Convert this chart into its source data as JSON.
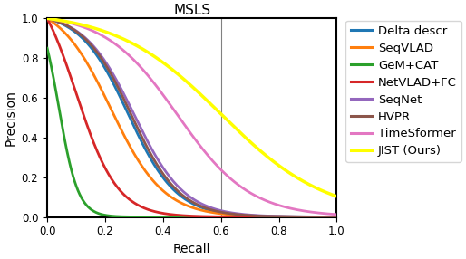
{
  "title": "MSLS",
  "xlabel": "Recall",
  "ylabel": "Precision",
  "xlim": [
    0.0,
    1.0
  ],
  "ylim": [
    0.0,
    1.0
  ],
  "vline_x": 0.6,
  "curves": [
    {
      "label": "Delta descr.",
      "color": "#1f77b4",
      "peak_recall": 0.28,
      "steepness": 12.0,
      "start_precision": 1.0
    },
    {
      "label": "SeqVLAD",
      "color": "#ff7f0e",
      "peak_recall": 0.22,
      "steepness": 11.0,
      "start_precision": 1.0
    },
    {
      "label": "GeM+CAT",
      "color": "#2ca02c",
      "peak_recall": 0.04,
      "steepness": 30.0,
      "start_precision": 0.85
    },
    {
      "label": "NetVLAD+FC",
      "color": "#d62728",
      "peak_recall": 0.1,
      "steepness": 14.0,
      "start_precision": 1.0
    },
    {
      "label": "SeqNet",
      "color": "#9467bd",
      "peak_recall": 0.3,
      "steepness": 11.5,
      "start_precision": 1.0
    },
    {
      "label": "HVPR",
      "color": "#8c564b",
      "peak_recall": 0.29,
      "steepness": 12.0,
      "start_precision": 1.0
    },
    {
      "label": "TimeSformer",
      "color": "#e377c2",
      "peak_recall": 0.45,
      "steepness": 8.0,
      "start_precision": 1.0
    },
    {
      "label": "JIST (Ours)",
      "color": "#ffff00",
      "peak_recall": 0.6,
      "steepness": 5.5,
      "start_precision": 1.0
    }
  ],
  "linewidth": 2.0,
  "jist_linewidth": 2.5,
  "background_color": "#ffffff",
  "figsize": [
    5.14,
    2.86
  ],
  "dpi": 100,
  "legend_fontsize": 9.5,
  "axis_fontsize": 10,
  "title_fontsize": 11
}
